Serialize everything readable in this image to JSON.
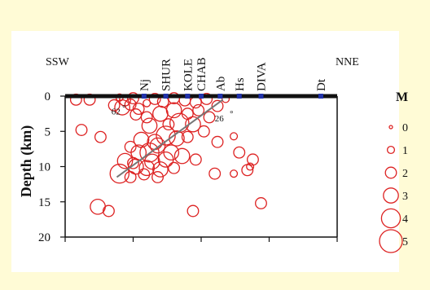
{
  "chart_data": {
    "type": "scatter",
    "title": "",
    "xlabel": "",
    "ylabel": "Depth (km)",
    "ylim": [
      0,
      20
    ],
    "y_inverted": true,
    "y_ticks": [
      "0",
      "5",
      "10",
      "15",
      "20"
    ],
    "x_ticks_labeled": false,
    "direction_left": "SSW",
    "direction_right": "NNE",
    "x_range": [
      0,
      100
    ],
    "stations": [
      {
        "name": "Nj",
        "x": 29
      },
      {
        "name": "SHUR",
        "x": 37
      },
      {
        "name": "KOLE",
        "x": 45
      },
      {
        "name": "CHAB",
        "x": 50
      },
      {
        "name": "Ab",
        "x": 57
      },
      {
        "name": "Hs",
        "x": 64
      },
      {
        "name": "DIVA",
        "x": 72
      },
      {
        "name": "Dt",
        "x": 94
      }
    ],
    "fault_line": {
      "x0": 19,
      "y0": 11.5,
      "x1": 58,
      "y1": 0.5
    },
    "annotations": [
      {
        "text": "62",
        "x": 17,
        "y": 2.6
      },
      {
        "text": "°",
        "x": 21,
        "y": 2.1
      },
      {
        "text": "26",
        "x": 55,
        "y": 3.6
      },
      {
        "text": "°",
        "x": 60.5,
        "y": 2.9
      }
    ],
    "legend": {
      "title": "M",
      "position": "right",
      "items": [
        {
          "label": "0",
          "magnitude": 0
        },
        {
          "label": "1",
          "magnitude": 1
        },
        {
          "label": "2",
          "magnitude": 2
        },
        {
          "label": "3",
          "magnitude": 3
        },
        {
          "label": "4",
          "magnitude": 4
        },
        {
          "label": "5",
          "magnitude": 5
        }
      ]
    },
    "colors": {
      "events": "#dd2222",
      "stations": "#2233aa",
      "frame": "#111111",
      "fault": "#777777",
      "background": "#fffbd6",
      "panel": "#ffffff"
    },
    "series": [
      {
        "points": [
          [
            4,
            0.5,
            2
          ],
          [
            9,
            0.5,
            2
          ],
          [
            20,
            0.2,
            1
          ],
          [
            22,
            0.6,
            2
          ],
          [
            25,
            0.3,
            2
          ],
          [
            18,
            1.3,
            2
          ],
          [
            21,
            1.6,
            3
          ],
          [
            24,
            1.2,
            2
          ],
          [
            27,
            1.8,
            2
          ],
          [
            30,
            1.0,
            1
          ],
          [
            33,
            0.4,
            2
          ],
          [
            36,
            0.8,
            2
          ],
          [
            40,
            0.3,
            2
          ],
          [
            44,
            0.6,
            2
          ],
          [
            48,
            0.9,
            2
          ],
          [
            52,
            0.4,
            2
          ],
          [
            56,
            1.4,
            2
          ],
          [
            59,
            0.4,
            1
          ],
          [
            26,
            2.6,
            2
          ],
          [
            30,
            3.0,
            2
          ],
          [
            35,
            2.5,
            3
          ],
          [
            40,
            2.0,
            3
          ],
          [
            45,
            2.5,
            2
          ],
          [
            49,
            2.0,
            2
          ],
          [
            53,
            3.0,
            2
          ],
          [
            31,
            4.2,
            3
          ],
          [
            38,
            4.0,
            2
          ],
          [
            42,
            3.8,
            4
          ],
          [
            47,
            4.0,
            3
          ],
          [
            51,
            5.0,
            2
          ],
          [
            28,
            6.2,
            3
          ],
          [
            33,
            6.5,
            3
          ],
          [
            37,
            5.6,
            4
          ],
          [
            41,
            6.0,
            3
          ],
          [
            45,
            5.8,
            2
          ],
          [
            24,
            7.2,
            2
          ],
          [
            27,
            8.0,
            3
          ],
          [
            31,
            8.0,
            4
          ],
          [
            34,
            7.0,
            3
          ],
          [
            39,
            8.0,
            3
          ],
          [
            43,
            8.5,
            3
          ],
          [
            48,
            9.0,
            2
          ],
          [
            22,
            9.2,
            3
          ],
          [
            26,
            10.0,
            3
          ],
          [
            30,
            10.2,
            3
          ],
          [
            35,
            10.4,
            3
          ],
          [
            40,
            10.2,
            2
          ],
          [
            20,
            11.0,
            4
          ],
          [
            24,
            11.5,
            2
          ],
          [
            34,
            11.5,
            2
          ],
          [
            6,
            4.8,
            2
          ],
          [
            13,
            5.8,
            2
          ],
          [
            62,
            5.7,
            1
          ],
          [
            56,
            6.5,
            2
          ],
          [
            64,
            8.0,
            2
          ],
          [
            69,
            9.0,
            2
          ],
          [
            68,
            10.0,
            1
          ],
          [
            67,
            10.5,
            2
          ],
          [
            25,
            9.5,
            2
          ],
          [
            32,
            9.3,
            3
          ],
          [
            37,
            9.0,
            3
          ],
          [
            29,
            11.1,
            2
          ],
          [
            55,
            11.0,
            2
          ],
          [
            62,
            11.0,
            1
          ],
          [
            72,
            15.2,
            2
          ],
          [
            12,
            15.7,
            3
          ],
          [
            16,
            16.3,
            2
          ],
          [
            47,
            16.3,
            2
          ]
        ]
      }
    ]
  }
}
